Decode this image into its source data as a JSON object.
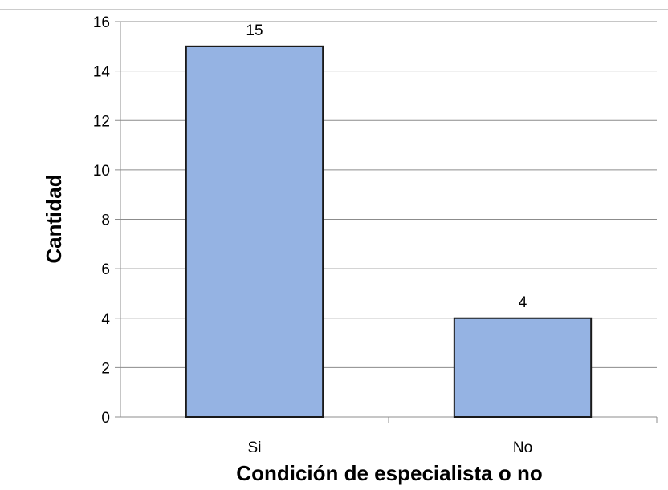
{
  "chart_data": {
    "type": "bar",
    "title": "",
    "xlabel": "Condición de especialista o no",
    "ylabel": "Cantidad",
    "categories": [
      "Si",
      "No"
    ],
    "values": [
      15,
      4
    ],
    "data_labels": [
      "15",
      "4"
    ],
    "ylim": [
      0,
      16
    ],
    "yticks": [
      0,
      2,
      4,
      6,
      8,
      10,
      12,
      14,
      16
    ],
    "grid": true,
    "legend": "none",
    "colors": {
      "bar_fill": "#95b3e3",
      "bar_stroke": "#1a1a1a",
      "grid": "#8c8c8c",
      "axis": "#8c8c8c",
      "text": "#000000"
    }
  }
}
